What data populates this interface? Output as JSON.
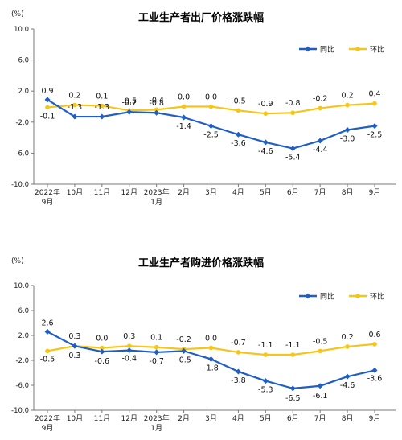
{
  "chart_data": [
    {
      "type": "line",
      "title": "工业生产者出厂价格涨跌幅",
      "ylabel": "(%)",
      "ylim": [
        -10.0,
        10.0
      ],
      "yticks": [
        "10.0",
        "6.0",
        "2.0",
        "-2.0",
        "-6.0",
        "-10.0"
      ],
      "grid": false,
      "legend_position": "top-right",
      "categories": [
        [
          "2022年",
          "9月"
        ],
        [
          "10月"
        ],
        [
          "11月"
        ],
        [
          "12月"
        ],
        [
          "2023年",
          "1月"
        ],
        [
          "2月"
        ],
        [
          "3月"
        ],
        [
          "4月"
        ],
        [
          "5月"
        ],
        [
          "6月"
        ],
        [
          "7月"
        ],
        [
          "8月"
        ],
        [
          "9月"
        ]
      ],
      "series": [
        {
          "name": "同比",
          "color": "#1f5fc4",
          "marker": "diamond",
          "values": [
            0.9,
            -1.3,
            -1.3,
            -0.7,
            -0.8,
            -1.4,
            -2.5,
            -3.6,
            -4.6,
            -5.4,
            -4.4,
            -3.0,
            -2.5
          ]
        },
        {
          "name": "环比",
          "color": "#f5c518",
          "marker": "circle",
          "values": [
            -0.1,
            0.2,
            0.1,
            -0.5,
            -0.4,
            0.0,
            0.0,
            -0.5,
            -0.9,
            -0.8,
            -0.2,
            0.2,
            0.4
          ]
        }
      ],
      "labels": {
        "同比": [
          "0.9",
          "-1.3",
          "-1.3",
          "-0.7",
          "-0.8",
          "-1.4",
          "-2.5",
          "-3.6",
          "-4.6",
          "-5.4",
          "-4.4",
          "-3.0",
          "-2.5"
        ],
        "环比": [
          "-0.1",
          "0.2",
          "0.1",
          "-0.5",
          "-0.4",
          "0.0",
          "0.0",
          "-0.5",
          "-0.9",
          "-0.8",
          "-0.2",
          "0.2",
          "0.4"
        ]
      }
    },
    {
      "type": "line",
      "title": "工业生产者购进价格涨跌幅",
      "ylabel": "(%)",
      "ylim": [
        -10.0,
        10.0
      ],
      "yticks": [
        "10.0",
        "6.0",
        "2.0",
        "-2.0",
        "-6.0",
        "-10.0"
      ],
      "grid": false,
      "legend_position": "top-right",
      "categories": [
        [
          "2022年",
          "9月"
        ],
        [
          "10月"
        ],
        [
          "11月"
        ],
        [
          "12月"
        ],
        [
          "2023年",
          "1月"
        ],
        [
          "2月"
        ],
        [
          "3月"
        ],
        [
          "4月"
        ],
        [
          "5月"
        ],
        [
          "6月"
        ],
        [
          "7月"
        ],
        [
          "8月"
        ],
        [
          "9月"
        ]
      ],
      "series": [
        {
          "name": "同比",
          "color": "#1f5fc4",
          "marker": "diamond",
          "values": [
            2.6,
            0.3,
            -0.6,
            -0.4,
            -0.7,
            -0.5,
            -1.8,
            -3.8,
            -5.3,
            -6.5,
            -6.1,
            -4.6,
            -3.6
          ]
        },
        {
          "name": "环比",
          "color": "#f5c518",
          "marker": "circle",
          "values": [
            -0.5,
            0.3,
            0.0,
            0.3,
            0.1,
            -0.2,
            0.0,
            -0.7,
            -1.1,
            -1.1,
            -0.5,
            0.2,
            0.6
          ]
        }
      ],
      "labels": {
        "同比": [
          "2.6",
          "0.3",
          "-0.6",
          "-0.4",
          "-0.7",
          "-0.5",
          "-1.8",
          "-3.8",
          "-5.3",
          "-6.5",
          "-6.1",
          "-4.6",
          "-3.6"
        ],
        "环比": [
          "-0.5",
          "0.3",
          "0.0",
          "0.3",
          "0.1",
          "-0.2",
          "0.0",
          "-0.7",
          "-1.1",
          "-1.1",
          "-0.5",
          "0.2",
          "0.6"
        ]
      }
    }
  ]
}
